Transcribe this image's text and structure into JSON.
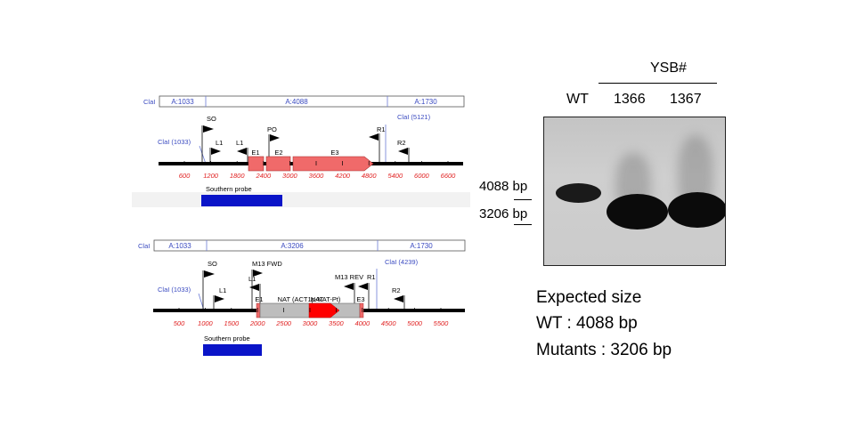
{
  "map1": {
    "seg_labels": [
      "A:1033",
      "A:4088",
      "A:1730"
    ],
    "clai_left": "ClaI",
    "clai_1033": "ClaI (1033)",
    "clai_right": "ClaI (5121)",
    "so_label": "SO",
    "l1a_label": "L1",
    "l1b_label": "L1",
    "po_label": "PO",
    "r1_label": "R1",
    "r2_label": "R2",
    "exon_labels": [
      "E1",
      "E2",
      "E3"
    ],
    "ticks": [
      "600",
      "1200",
      "1800",
      "2400",
      "3000",
      "3600",
      "4200",
      "4800",
      "5400",
      "6000",
      "6600"
    ],
    "probe_label": "Southern probe"
  },
  "map2": {
    "seg_labels": [
      "A:1033",
      "A:3206",
      "A:1730"
    ],
    "clai_left": "ClaI",
    "clai_1033": "ClaI (1033)",
    "clai_right": "ClaI (4239)",
    "so_label": "SO",
    "l1a_label": "L1",
    "l1b_label": "L1",
    "m13fwd_label": "M13 FWD",
    "m13rev_label": "M13 REV",
    "r1_label": "R1",
    "r2_label": "R2",
    "e1_label": "E1",
    "e3_label": "E3",
    "nat_cassette_label": "NAT (ACT1p-NAT-Pt)",
    "nat_label": "NAT",
    "ticks": [
      "500",
      "1000",
      "1500",
      "2000",
      "2500",
      "3000",
      "3500",
      "4000",
      "4500",
      "5000",
      "5500"
    ],
    "probe_label": "Southern probe"
  },
  "gel": {
    "group_label": "YSB#",
    "lanes": [
      "WT",
      "1366",
      "1367"
    ],
    "marker_top": "4088 bp",
    "marker_bottom": "3206 bp"
  },
  "expected": {
    "title": "Expected size",
    "wt": "WT : 4088 bp",
    "mutants": "Mutants : 3206 bp"
  },
  "colors": {
    "ruler": "#e02020",
    "probe": "#0a14c8",
    "exon": "#f06a6a",
    "nat_cassette": "#bdbdbd",
    "nat_marker": "#ff0000",
    "site_line": "#6b7bd6",
    "clai_text": "#3a4ac0"
  }
}
